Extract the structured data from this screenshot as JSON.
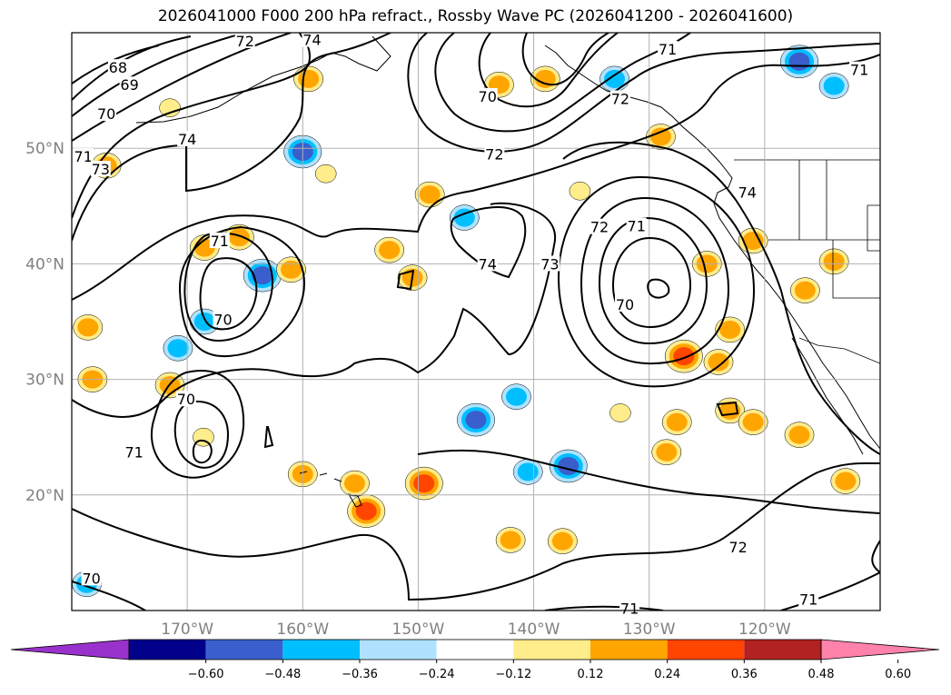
{
  "title": "2026041000 F000 200 hPa refract., Rossby Wave PC (2026041200 - 2026041600)",
  "chart_data": {
    "type": "contour-map",
    "title": "2026041000 F000 200 hPa refract., Rossby Wave PC (2026041200 - 2026041600)",
    "lat_range": [
      10,
      60
    ],
    "lon_range": [
      -180,
      -110
    ],
    "lat_ticks": [
      "20°N",
      "30°N",
      "40°N",
      "50°N"
    ],
    "lat_tick_values": [
      20,
      30,
      40,
      50
    ],
    "lon_ticks": [
      "170°W",
      "160°W",
      "150°W",
      "140°W",
      "130°W",
      "120°W"
    ],
    "lon_tick_values": [
      -170,
      -160,
      -150,
      -140,
      -130,
      -120
    ],
    "grid": true,
    "contour_levels": [
      68,
      69,
      70,
      71,
      72,
      73,
      74
    ],
    "contour_labels": [
      {
        "text": "68",
        "lon": -176,
        "lat": 57
      },
      {
        "text": "69",
        "lon": -175,
        "lat": 55.5
      },
      {
        "text": "70",
        "lon": -177,
        "lat": 53
      },
      {
        "text": "71",
        "lon": -179,
        "lat": 49.3
      },
      {
        "text": "73",
        "lon": -177.5,
        "lat": 48.2
      },
      {
        "text": "74",
        "lon": -170,
        "lat": 50.8
      },
      {
        "text": "72",
        "lon": -165,
        "lat": 59.3
      },
      {
        "text": "74",
        "lon": -159.2,
        "lat": 59.4
      },
      {
        "text": "70",
        "lon": -144,
        "lat": 54.5
      },
      {
        "text": "72",
        "lon": -143.4,
        "lat": 49.5
      },
      {
        "text": "71",
        "lon": -167.2,
        "lat": 42
      },
      {
        "text": "70",
        "lon": -166.9,
        "lat": 35.2
      },
      {
        "text": "74",
        "lon": -144,
        "lat": 40
      },
      {
        "text": "73",
        "lon": -138.6,
        "lat": 40
      },
      {
        "text": "72",
        "lon": -134.3,
        "lat": 43.2
      },
      {
        "text": "71",
        "lon": -131.1,
        "lat": 43.3
      },
      {
        "text": "70",
        "lon": -132.1,
        "lat": 36.5
      },
      {
        "text": "72",
        "lon": -132.5,
        "lat": 54.3
      },
      {
        "text": "71",
        "lon": -128.4,
        "lat": 58.6
      },
      {
        "text": "74",
        "lon": -121.5,
        "lat": 46.2
      },
      {
        "text": "71",
        "lon": -111.8,
        "lat": 56.8
      },
      {
        "text": "70",
        "lon": -170.1,
        "lat": 28.3
      },
      {
        "text": "71",
        "lon": -174.6,
        "lat": 23.7
      },
      {
        "text": "72",
        "lon": -122.3,
        "lat": 15.5
      },
      {
        "text": "71",
        "lon": -116.2,
        "lat": 11
      },
      {
        "text": "71",
        "lon": -131.7,
        "lat": 10.2
      },
      {
        "text": "70",
        "lon": -178.3,
        "lat": 12.8
      }
    ],
    "colorbar": {
      "ticks": [
        "−0.60",
        "−0.48",
        "−0.36",
        "−0.24",
        "−0.12",
        "0.12",
        "0.24",
        "0.36",
        "0.48",
        "0.60"
      ],
      "tick_values": [
        -0.6,
        -0.48,
        -0.36,
        -0.24,
        -0.12,
        0.12,
        0.24,
        0.36,
        0.48,
        0.6
      ],
      "colors": [
        "#9932cc",
        "#00008b",
        "#3a5fcd",
        "#00bfff",
        "#b0e2ff",
        "#ffffff",
        "#ffec8b",
        "#ffa500",
        "#ff4500",
        "#b22222",
        "#ff82ab"
      ],
      "extend": "both"
    },
    "shaded_patches": [
      {
        "lon": -177,
        "lat": 48.5,
        "value": 0.3
      },
      {
        "lon": -159.5,
        "lat": 56,
        "value": 0.3
      },
      {
        "lon": -171.5,
        "lat": 53.5,
        "value": 0.15
      },
      {
        "lon": -160,
        "lat": 49.7,
        "value": -0.45
      },
      {
        "lon": -158,
        "lat": 47.8,
        "value": 0.2
      },
      {
        "lon": -168.5,
        "lat": 41.4,
        "value": 0.35
      },
      {
        "lon": -165.5,
        "lat": 42.3,
        "value": 0.25
      },
      {
        "lon": -163.5,
        "lat": 39,
        "value": -0.45
      },
      {
        "lon": -161,
        "lat": 39.5,
        "value": 0.25
      },
      {
        "lon": -178.6,
        "lat": 34.5,
        "value": 0.3
      },
      {
        "lon": -168.5,
        "lat": 35,
        "value": -0.3
      },
      {
        "lon": -170.8,
        "lat": 32.7,
        "value": -0.3
      },
      {
        "lon": -178.2,
        "lat": 30,
        "value": 0.35
      },
      {
        "lon": -171.5,
        "lat": 29.5,
        "value": 0.25
      },
      {
        "lon": -168.6,
        "lat": 25,
        "value": 0.2
      },
      {
        "lon": -152.5,
        "lat": 41.2,
        "value": 0.3
      },
      {
        "lon": -149,
        "lat": 46,
        "value": 0.35
      },
      {
        "lon": -146,
        "lat": 44,
        "value": -0.3
      },
      {
        "lon": -150.5,
        "lat": 38.8,
        "value": 0.25
      },
      {
        "lon": -143,
        "lat": 55.5,
        "value": 0.3
      },
      {
        "lon": -139,
        "lat": 56,
        "value": 0.3
      },
      {
        "lon": -133,
        "lat": 56,
        "value": -0.3
      },
      {
        "lon": -117,
        "lat": 57.5,
        "value": -0.4
      },
      {
        "lon": -114,
        "lat": 55.4,
        "value": -0.24
      },
      {
        "lon": -145,
        "lat": 26.5,
        "value": -0.45
      },
      {
        "lon": -141.5,
        "lat": 28.5,
        "value": -0.3
      },
      {
        "lon": -140.5,
        "lat": 22,
        "value": -0.24
      },
      {
        "lon": -137,
        "lat": 22.5,
        "value": -0.4
      },
      {
        "lon": -149.5,
        "lat": 21,
        "value": 0.4
      },
      {
        "lon": -154.5,
        "lat": 18.6,
        "value": 0.4
      },
      {
        "lon": -155.5,
        "lat": 21,
        "value": 0.3
      },
      {
        "lon": -160,
        "lat": 21.8,
        "value": 0.25
      },
      {
        "lon": -136,
        "lat": 46.3,
        "value": 0.2
      },
      {
        "lon": -129,
        "lat": 51,
        "value": 0.25
      },
      {
        "lon": -127,
        "lat": 32,
        "value": 0.45
      },
      {
        "lon": -124,
        "lat": 31.5,
        "value": 0.35
      },
      {
        "lon": -123,
        "lat": 34.3,
        "value": 0.3
      },
      {
        "lon": -125,
        "lat": 40,
        "value": 0.25
      },
      {
        "lon": -121,
        "lat": 42,
        "value": 0.35
      },
      {
        "lon": -116.5,
        "lat": 37.7,
        "value": 0.35
      },
      {
        "lon": -114,
        "lat": 40.2,
        "value": 0.25
      },
      {
        "lon": -127.6,
        "lat": 26.3,
        "value": 0.25
      },
      {
        "lon": -128.5,
        "lat": 23.7,
        "value": 0.3
      },
      {
        "lon": -123,
        "lat": 27.3,
        "value": 0.25
      },
      {
        "lon": -121,
        "lat": 26.3,
        "value": 0.3
      },
      {
        "lon": -132.5,
        "lat": 27.1,
        "value": 0.2
      },
      {
        "lon": -117,
        "lat": 25.2,
        "value": 0.3
      },
      {
        "lon": -113,
        "lat": 21.2,
        "value": 0.35
      },
      {
        "lon": -137.5,
        "lat": 16,
        "value": 0.35
      },
      {
        "lon": -142,
        "lat": 16.1,
        "value": 0.3
      },
      {
        "lon": -178.7,
        "lat": 12.3,
        "value": -0.24
      }
    ]
  }
}
